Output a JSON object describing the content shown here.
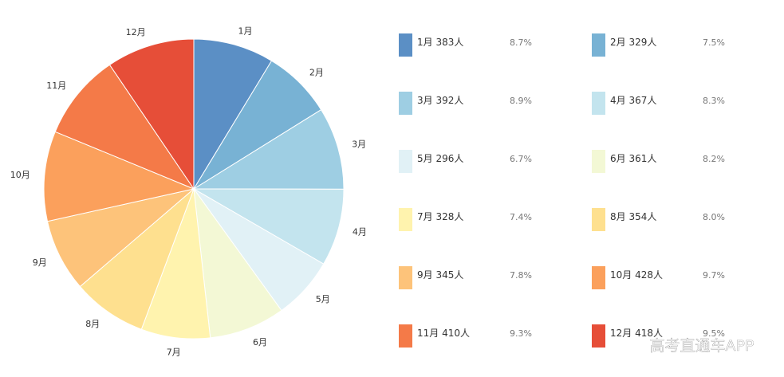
{
  "chart_data": {
    "type": "pie",
    "categories": [
      "1月",
      "2月",
      "3月",
      "4月",
      "5月",
      "6月",
      "7月",
      "8月",
      "9月",
      "10月",
      "11月",
      "12月"
    ],
    "values": [
      383,
      329,
      392,
      367,
      296,
      361,
      328,
      354,
      345,
      428,
      410,
      418
    ],
    "unit": "人",
    "percentages": [
      "8.7%",
      "7.5%",
      "8.9%",
      "8.3%",
      "6.7%",
      "8.2%",
      "7.4%",
      "8.0%",
      "7.8%",
      "9.7%",
      "9.3%",
      "9.5%"
    ],
    "colors": [
      "#5b8fc5",
      "#78b2d4",
      "#9ecee3",
      "#c3e4ee",
      "#e1f1f6",
      "#f3f8d5",
      "#fff3ae",
      "#fee08f",
      "#fdc37a",
      "#fba05c",
      "#f47a48",
      "#e64e38"
    ],
    "legend_placement": "right",
    "start_angle": "top, clockwise"
  },
  "watermark": "高考直通车APP"
}
